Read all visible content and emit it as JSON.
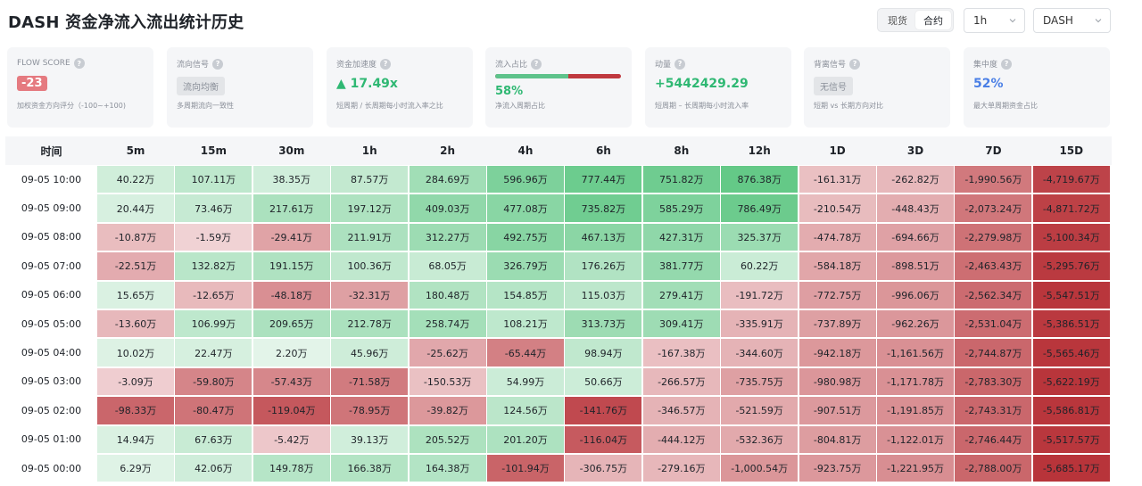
{
  "header": {
    "title": "DASH 资金净流入流出统计历史",
    "market_toggle": [
      "现货",
      "合约"
    ],
    "market_active_index": 1,
    "interval_select": "1h",
    "symbol_select": "DASH"
  },
  "cards": [
    {
      "label": "FLOW SCORE",
      "value": "-23",
      "sub": "加权资金方向评分（-100~+100)",
      "style": "badge-red"
    },
    {
      "label": "流向信号",
      "value": "流向均衡",
      "sub": "多周期流向一致性",
      "style": "badge-grey"
    },
    {
      "label": "资金加速度",
      "value": "▲ 17.49x",
      "sub": "短周期 / 长周期每小时流入率之比",
      "style": "green"
    },
    {
      "label": "流入占比",
      "value": "58%",
      "sub": "净流入周期占比",
      "style": "ratio",
      "ratio": 0.58
    },
    {
      "label": "动量",
      "value": "+5442429.29",
      "sub": "短周期 – 长周期每小时流入率",
      "style": "green"
    },
    {
      "label": "背离信号",
      "value": "无信号",
      "sub": "短期 vs 长期方向对比",
      "style": "badge-grey"
    },
    {
      "label": "集中度",
      "value": "52%",
      "sub": "最大单周期资金占比",
      "style": "blue"
    }
  ],
  "colors": {
    "positive": "#2fb873",
    "negative": "#c0393f",
    "badge_red": "#e57a80",
    "card_bg": "#f5f6f8"
  },
  "table": {
    "time_header": "时间",
    "columns": [
      "5m",
      "15m",
      "30m",
      "1h",
      "2h",
      "4h",
      "6h",
      "8h",
      "12h",
      "1D",
      "3D",
      "7D",
      "15D"
    ],
    "rows": [
      {
        "time": "09-05 10:00",
        "cells": [
          {
            "text": "40.22万",
            "v": 40.22
          },
          {
            "text": "107.11万",
            "v": 107.11
          },
          {
            "text": "38.35万",
            "v": 38.35
          },
          {
            "text": "87.57万",
            "v": 87.57
          },
          {
            "text": "284.69万",
            "v": 284.69
          },
          {
            "text": "596.96万",
            "v": 596.96
          },
          {
            "text": "777.44万",
            "v": 777.44
          },
          {
            "text": "751.82万",
            "v": 751.82
          },
          {
            "text": "876.38万",
            "v": 876.38
          },
          {
            "text": "-161.31万",
            "v": -161.31
          },
          {
            "text": "-262.82万",
            "v": -262.82
          },
          {
            "text": "-1,990.56万",
            "v": -1990.56
          },
          {
            "text": "-4,719.67万",
            "v": -4719.67
          }
        ]
      },
      {
        "time": "09-05 09:00",
        "cells": [
          {
            "text": "20.44万",
            "v": 20.44
          },
          {
            "text": "73.46万",
            "v": 73.46
          },
          {
            "text": "217.61万",
            "v": 217.61
          },
          {
            "text": "197.12万",
            "v": 197.12
          },
          {
            "text": "409.03万",
            "v": 409.03
          },
          {
            "text": "477.08万",
            "v": 477.08
          },
          {
            "text": "735.82万",
            "v": 735.82
          },
          {
            "text": "585.29万",
            "v": 585.29
          },
          {
            "text": "786.49万",
            "v": 786.49
          },
          {
            "text": "-210.54万",
            "v": -210.54
          },
          {
            "text": "-448.43万",
            "v": -448.43
          },
          {
            "text": "-2,073.24万",
            "v": -2073.24
          },
          {
            "text": "-4,871.72万",
            "v": -4871.72
          }
        ]
      },
      {
        "time": "09-05 08:00",
        "cells": [
          {
            "text": "-10.87万",
            "v": -10.87
          },
          {
            "text": "-1.59万",
            "v": -1.59
          },
          {
            "text": "-29.41万",
            "v": -29.41
          },
          {
            "text": "211.91万",
            "v": 211.91
          },
          {
            "text": "312.27万",
            "v": 312.27
          },
          {
            "text": "492.75万",
            "v": 492.75
          },
          {
            "text": "467.13万",
            "v": 467.13
          },
          {
            "text": "427.31万",
            "v": 427.31
          },
          {
            "text": "325.37万",
            "v": 325.37
          },
          {
            "text": "-474.78万",
            "v": -474.78
          },
          {
            "text": "-694.66万",
            "v": -694.66
          },
          {
            "text": "-2,279.98万",
            "v": -2279.98
          },
          {
            "text": "-5,100.34万",
            "v": -5100.34
          }
        ]
      },
      {
        "time": "09-05 07:00",
        "cells": [
          {
            "text": "-22.51万",
            "v": -22.51
          },
          {
            "text": "132.82万",
            "v": 132.82
          },
          {
            "text": "191.15万",
            "v": 191.15
          },
          {
            "text": "100.36万",
            "v": 100.36
          },
          {
            "text": "68.05万",
            "v": 68.05
          },
          {
            "text": "326.79万",
            "v": 326.79
          },
          {
            "text": "176.26万",
            "v": 176.26
          },
          {
            "text": "381.77万",
            "v": 381.77
          },
          {
            "text": "60.22万",
            "v": 60.22
          },
          {
            "text": "-584.18万",
            "v": -584.18
          },
          {
            "text": "-898.51万",
            "v": -898.51
          },
          {
            "text": "-2,463.43万",
            "v": -2463.43
          },
          {
            "text": "-5,295.76万",
            "v": -5295.76
          }
        ]
      },
      {
        "time": "09-05 06:00",
        "cells": [
          {
            "text": "15.65万",
            "v": 15.65
          },
          {
            "text": "-12.65万",
            "v": -12.65
          },
          {
            "text": "-48.18万",
            "v": -48.18
          },
          {
            "text": "-32.31万",
            "v": -32.31
          },
          {
            "text": "180.48万",
            "v": 180.48
          },
          {
            "text": "154.85万",
            "v": 154.85
          },
          {
            "text": "115.03万",
            "v": 115.03
          },
          {
            "text": "279.41万",
            "v": 279.41
          },
          {
            "text": "-191.72万",
            "v": -191.72
          },
          {
            "text": "-772.75万",
            "v": -772.75
          },
          {
            "text": "-996.06万",
            "v": -996.06
          },
          {
            "text": "-2,562.34万",
            "v": -2562.34
          },
          {
            "text": "-5,547.51万",
            "v": -5547.51
          }
        ]
      },
      {
        "time": "09-05 05:00",
        "cells": [
          {
            "text": "-13.60万",
            "v": -13.6
          },
          {
            "text": "106.99万",
            "v": 106.99
          },
          {
            "text": "209.65万",
            "v": 209.65
          },
          {
            "text": "212.78万",
            "v": 212.78
          },
          {
            "text": "258.74万",
            "v": 258.74
          },
          {
            "text": "108.21万",
            "v": 108.21
          },
          {
            "text": "313.73万",
            "v": 313.73
          },
          {
            "text": "309.41万",
            "v": 309.41
          },
          {
            "text": "-335.91万",
            "v": -335.91
          },
          {
            "text": "-737.89万",
            "v": -737.89
          },
          {
            "text": "-962.26万",
            "v": -962.26
          },
          {
            "text": "-2,531.04万",
            "v": -2531.04
          },
          {
            "text": "-5,386.51万",
            "v": -5386.51
          }
        ]
      },
      {
        "time": "09-05 04:00",
        "cells": [
          {
            "text": "10.02万",
            "v": 10.02
          },
          {
            "text": "22.47万",
            "v": 22.47
          },
          {
            "text": "2.20万",
            "v": 2.2
          },
          {
            "text": "45.96万",
            "v": 45.96
          },
          {
            "text": "-25.62万",
            "v": -25.62
          },
          {
            "text": "-65.44万",
            "v": -65.44
          },
          {
            "text": "98.94万",
            "v": 98.94
          },
          {
            "text": "-167.38万",
            "v": -167.38
          },
          {
            "text": "-344.60万",
            "v": -344.6
          },
          {
            "text": "-942.18万",
            "v": -942.18
          },
          {
            "text": "-1,161.56万",
            "v": -1161.56
          },
          {
            "text": "-2,744.87万",
            "v": -2744.87
          },
          {
            "text": "-5,565.46万",
            "v": -5565.46
          }
        ]
      },
      {
        "time": "09-05 03:00",
        "cells": [
          {
            "text": "-3.09万",
            "v": -3.09
          },
          {
            "text": "-59.80万",
            "v": -59.8
          },
          {
            "text": "-57.43万",
            "v": -57.43
          },
          {
            "text": "-71.58万",
            "v": -71.58
          },
          {
            "text": "-150.53万",
            "v": -150.53
          },
          {
            "text": "54.99万",
            "v": 54.99
          },
          {
            "text": "50.66万",
            "v": 50.66
          },
          {
            "text": "-266.57万",
            "v": -266.57
          },
          {
            "text": "-735.75万",
            "v": -735.75
          },
          {
            "text": "-980.98万",
            "v": -980.98
          },
          {
            "text": "-1,171.78万",
            "v": -1171.78
          },
          {
            "text": "-2,783.30万",
            "v": -2783.3
          },
          {
            "text": "-5,622.19万",
            "v": -5622.19
          }
        ]
      },
      {
        "time": "09-05 02:00",
        "cells": [
          {
            "text": "-98.33万",
            "v": -98.33
          },
          {
            "text": "-80.47万",
            "v": -80.47
          },
          {
            "text": "-119.04万",
            "v": -119.04
          },
          {
            "text": "-78.95万",
            "v": -78.95
          },
          {
            "text": "-39.82万",
            "v": -39.82
          },
          {
            "text": "124.56万",
            "v": 124.56
          },
          {
            "text": "-141.76万",
            "v": -141.76
          },
          {
            "text": "-346.57万",
            "v": -346.57
          },
          {
            "text": "-521.59万",
            "v": -521.59
          },
          {
            "text": "-907.51万",
            "v": -907.51
          },
          {
            "text": "-1,191.85万",
            "v": -1191.85
          },
          {
            "text": "-2,743.31万",
            "v": -2743.31
          },
          {
            "text": "-5,586.81万",
            "v": -5586.81
          }
        ]
      },
      {
        "time": "09-05 01:00",
        "cells": [
          {
            "text": "14.94万",
            "v": 14.94
          },
          {
            "text": "67.63万",
            "v": 67.63
          },
          {
            "text": "-5.42万",
            "v": -5.42
          },
          {
            "text": "39.13万",
            "v": 39.13
          },
          {
            "text": "205.52万",
            "v": 205.52
          },
          {
            "text": "201.20万",
            "v": 201.2
          },
          {
            "text": "-116.04万",
            "v": -116.04
          },
          {
            "text": "-444.12万",
            "v": -444.12
          },
          {
            "text": "-532.36万",
            "v": -532.36
          },
          {
            "text": "-804.81万",
            "v": -804.81
          },
          {
            "text": "-1,122.01万",
            "v": -1122.01
          },
          {
            "text": "-2,746.44万",
            "v": -2746.44
          },
          {
            "text": "-5,517.57万",
            "v": -5517.57
          }
        ]
      },
      {
        "time": "09-05 00:00",
        "cells": [
          {
            "text": "6.29万",
            "v": 6.29
          },
          {
            "text": "42.06万",
            "v": 42.06
          },
          {
            "text": "149.78万",
            "v": 149.78
          },
          {
            "text": "166.38万",
            "v": 166.38
          },
          {
            "text": "164.38万",
            "v": 164.38
          },
          {
            "text": "-101.94万",
            "v": -101.94
          },
          {
            "text": "-306.75万",
            "v": -306.75
          },
          {
            "text": "-279.16万",
            "v": -279.16
          },
          {
            "text": "-1,000.54万",
            "v": -1000.54
          },
          {
            "text": "-923.75万",
            "v": -923.75
          },
          {
            "text": "-1,221.95万",
            "v": -1221.95
          },
          {
            "text": "-2,788.00万",
            "v": -2788.0
          },
          {
            "text": "-5,685.17万",
            "v": -5685.17
          }
        ]
      }
    ]
  }
}
